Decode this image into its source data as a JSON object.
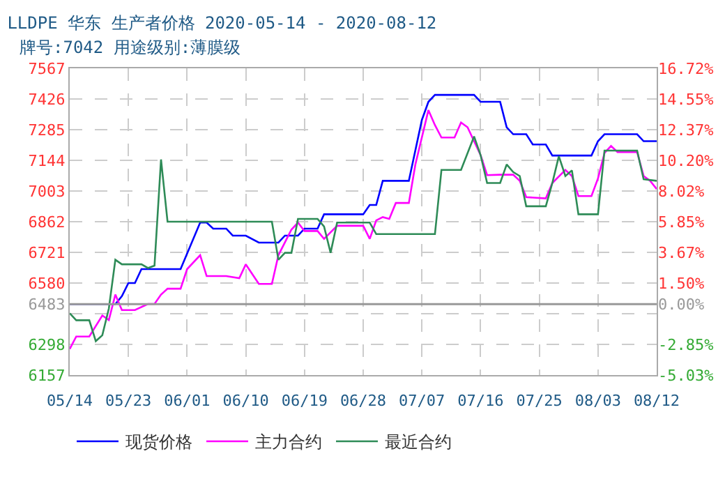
{
  "chart_data": {
    "type": "line",
    "title": "LLDPE 华东 生产者价格 2020-05-14 - 2020-08-12",
    "subtitle": "牌号:7042 用途级别:薄膜级",
    "xlim": [
      "2020-05-14",
      "2020-08-12"
    ],
    "xticks": [
      {
        "value": "2020-05-14",
        "label": "05/14"
      },
      {
        "value": "2020-05-23",
        "label": "05/23"
      },
      {
        "value": "2020-06-01",
        "label": "06/01"
      },
      {
        "value": "2020-06-10",
        "label": "06/10"
      },
      {
        "value": "2020-06-19",
        "label": "06/19"
      },
      {
        "value": "2020-06-28",
        "label": "06/28"
      },
      {
        "value": "2020-07-07",
        "label": "07/07"
      },
      {
        "value": "2020-07-16",
        "label": "07/16"
      },
      {
        "value": "2020-07-25",
        "label": "07/25"
      },
      {
        "value": "2020-08-03",
        "label": "08/03"
      },
      {
        "value": "2020-08-12",
        "label": "08/12"
      }
    ],
    "ylim": [
      6157,
      7567
    ],
    "yticks": [
      6157,
      6298,
      {
        "value": 6439,
        "label": null
      },
      6483,
      6580,
      6721,
      6862,
      7003,
      7144,
      7285,
      7426,
      7567
    ],
    "y2lim": [
      -5.03,
      16.72
    ],
    "y2ticks": [
      {
        "value": -5.03,
        "label": "-5.03%"
      },
      {
        "value": -2.85,
        "label": "-2.85%"
      },
      {
        "value": 0,
        "label": "0.00%"
      },
      {
        "value": 1.5,
        "label": "1.50%"
      },
      {
        "value": 3.67,
        "label": "3.67%"
      },
      {
        "value": 5.85,
        "label": "5.85%"
      },
      {
        "value": 8.02,
        "label": "8.02%"
      },
      {
        "value": 10.2,
        "label": "10.20%"
      },
      {
        "value": 12.37,
        "label": "12.37%"
      },
      {
        "value": 14.55,
        "label": "14.55%"
      },
      {
        "value": 16.72,
        "label": "16.72%"
      }
    ],
    "ref_lines": [
      {
        "axis": "y",
        "value": 6483,
        "color": "#999999",
        "line_style": "solid"
      }
    ],
    "grid": true,
    "legend": "bottom",
    "marker": "none",
    "line_style": "solid",
    "series": [
      {
        "name": "现货价格",
        "color": "#0000ff",
        "x": [
          "2020-05-14",
          "2020-05-21",
          "2020-05-22",
          "2020-05-23",
          "2020-05-24",
          "2020-05-25",
          "2020-05-31",
          "2020-06-03",
          "2020-06-04",
          "2020-06-05",
          "2020-06-07",
          "2020-06-08",
          "2020-06-10",
          "2020-06-12",
          "2020-06-15",
          "2020-06-16",
          "2020-06-18",
          "2020-06-19",
          "2020-06-21",
          "2020-06-22",
          "2020-06-28",
          "2020-06-29",
          "2020-06-30",
          "2020-07-01",
          "2020-07-05",
          "2020-07-07",
          "2020-07-08",
          "2020-07-09",
          "2020-07-15",
          "2020-07-16",
          "2020-07-19",
          "2020-07-20",
          "2020-07-21",
          "2020-07-23",
          "2020-07-24",
          "2020-07-26",
          "2020-07-27",
          "2020-08-02",
          "2020-08-03",
          "2020-08-04",
          "2020-08-09",
          "2020-08-10",
          "2020-08-12"
        ],
        "values": [
          6483,
          6483,
          6520,
          6580,
          6580,
          6644,
          6644,
          6858,
          6858,
          6830,
          6830,
          6798,
          6798,
          6766,
          6766,
          6798,
          6798,
          6830,
          6830,
          6896,
          6896,
          6939,
          6939,
          7050,
          7050,
          7330,
          7413,
          7445,
          7445,
          7413,
          7413,
          7296,
          7264,
          7264,
          7217,
          7217,
          7166,
          7166,
          7232,
          7264,
          7264,
          7232,
          7232
        ]
      },
      {
        "name": "主力合约",
        "color": "#ff00ff",
        "x": [
          "2020-05-14",
          "2020-05-15",
          "2020-05-17",
          "2020-05-19",
          "2020-05-20",
          "2020-05-21",
          "2020-05-22",
          "2020-05-24",
          "2020-05-26",
          "2020-05-27",
          "2020-05-28",
          "2020-05-29",
          "2020-05-31",
          "2020-06-01",
          "2020-06-03",
          "2020-06-04",
          "2020-06-07",
          "2020-06-09",
          "2020-06-10",
          "2020-06-12",
          "2020-06-14",
          "2020-06-15",
          "2020-06-17",
          "2020-06-18",
          "2020-06-19",
          "2020-06-21",
          "2020-06-22",
          "2020-06-24",
          "2020-06-28",
          "2020-06-29",
          "2020-06-30",
          "2020-07-01",
          "2020-07-02",
          "2020-07-03",
          "2020-07-05",
          "2020-07-06",
          "2020-07-08",
          "2020-07-09",
          "2020-07-10",
          "2020-07-12",
          "2020-07-13",
          "2020-07-14",
          "2020-07-16",
          "2020-07-17",
          "2020-07-19",
          "2020-07-21",
          "2020-07-22",
          "2020-07-23",
          "2020-07-26",
          "2020-07-27",
          "2020-07-29",
          "2020-07-30",
          "2020-07-31",
          "2020-08-02",
          "2020-08-03",
          "2020-08-04",
          "2020-08-05",
          "2020-08-06",
          "2020-08-09",
          "2020-08-10",
          "2020-08-11",
          "2020-08-12"
        ],
        "values": [
          6277,
          6334,
          6334,
          6431,
          6410,
          6527,
          6456,
          6456,
          6484,
          6484,
          6527,
          6554,
          6554,
          6644,
          6708,
          6612,
          6612,
          6602,
          6666,
          6576,
          6576,
          6708,
          6826,
          6858,
          6819,
          6819,
          6783,
          6843,
          6843,
          6783,
          6868,
          6883,
          6875,
          6948,
          6948,
          7125,
          7375,
          7306,
          7249,
          7249,
          7318,
          7296,
          7168,
          7076,
          7078,
          7078,
          7050,
          6975,
          6969,
          7040,
          7100,
          7072,
          6980,
          6980,
          7061,
          7178,
          7210,
          7182,
          7182,
          7072,
          7050,
          7012
        ]
      },
      {
        "name": "最近合约",
        "color": "#2e8b57",
        "x": [
          "2020-05-14",
          "2020-05-15",
          "2020-05-17",
          "2020-05-18",
          "2020-05-19",
          "2020-05-20",
          "2020-05-21",
          "2020-05-22",
          "2020-05-25",
          "2020-05-26",
          "2020-05-27",
          "2020-05-28",
          "2020-05-29",
          "2020-06-14",
          "2020-06-15",
          "2020-06-16",
          "2020-06-17",
          "2020-06-18",
          "2020-06-21",
          "2020-06-22",
          "2020-06-23",
          "2020-06-24",
          "2020-06-29",
          "2020-06-30",
          "2020-07-09",
          "2020-07-10",
          "2020-07-13",
          "2020-07-15",
          "2020-07-16",
          "2020-07-17",
          "2020-07-19",
          "2020-07-20",
          "2020-07-21",
          "2020-07-22",
          "2020-07-23",
          "2020-07-26",
          "2020-07-27",
          "2020-07-28",
          "2020-07-29",
          "2020-07-30",
          "2020-07-31",
          "2020-08-03",
          "2020-08-04",
          "2020-08-09",
          "2020-08-10",
          "2020-08-12"
        ],
        "values": [
          6441,
          6409,
          6409,
          6313,
          6340,
          6463,
          6687,
          6666,
          6666,
          6649,
          6660,
          7148,
          6862,
          6862,
          6687,
          6719,
          6719,
          6875,
          6875,
          6840,
          6719,
          6858,
          6858,
          6805,
          6805,
          7100,
          7100,
          7254,
          7168,
          7040,
          7040,
          7125,
          7090,
          7072,
          6933,
          6933,
          7040,
          7163,
          7072,
          7098,
          6896,
          6896,
          7189,
          7189,
          7057,
          7050
        ]
      }
    ]
  }
}
